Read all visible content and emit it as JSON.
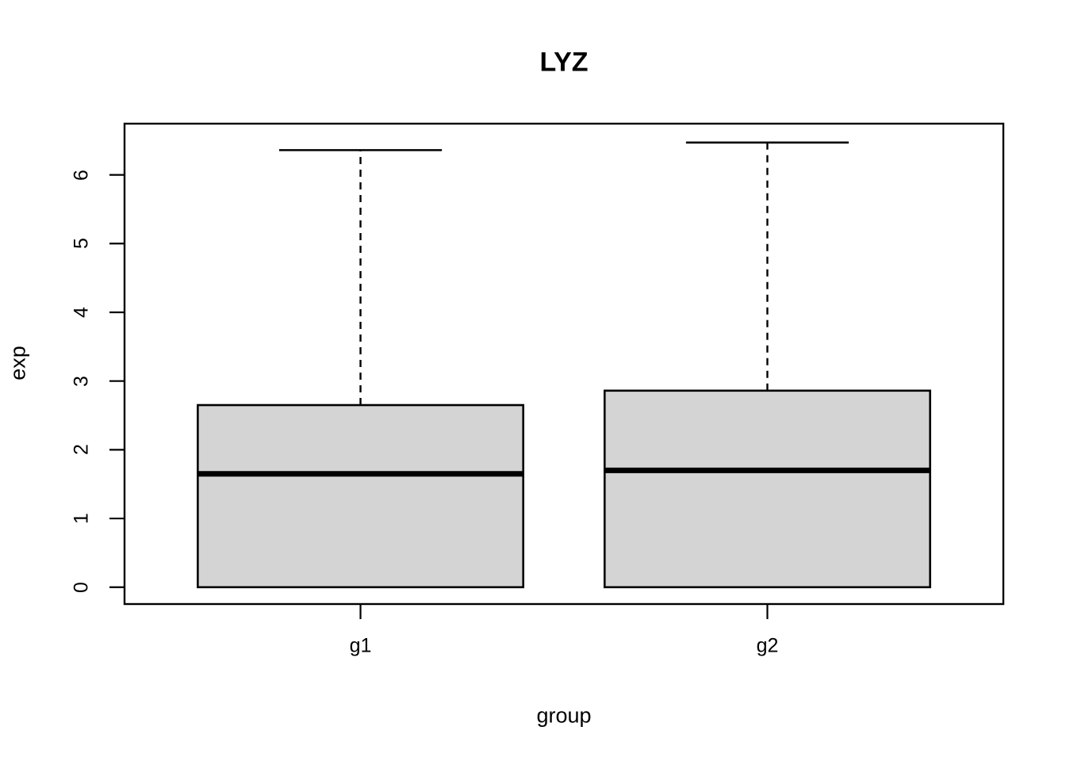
{
  "chart_data": {
    "type": "boxplot",
    "title": "LYZ",
    "xlabel": "group",
    "ylabel": "exp",
    "categories": [
      "g1",
      "g2"
    ],
    "positions": [
      1,
      2
    ],
    "y_ticks": [
      0,
      1,
      2,
      3,
      4,
      5,
      6
    ],
    "ylim": [
      -0.245,
      6.745
    ],
    "xlim": [
      0.42,
      2.58
    ],
    "box_width": 0.8,
    "staple_width": 0.4,
    "grid": false,
    "legend": "none",
    "box_fill": "#d4d4d4",
    "line_color": "#000000",
    "background": "#ffffff",
    "series": [
      {
        "name": "g1",
        "min": 0,
        "q1": 0,
        "median": 1.65,
        "q3": 2.65,
        "max": 6.36
      },
      {
        "name": "g2",
        "min": 0,
        "q1": 0,
        "median": 1.7,
        "q3": 2.86,
        "max": 6.47
      }
    ]
  }
}
